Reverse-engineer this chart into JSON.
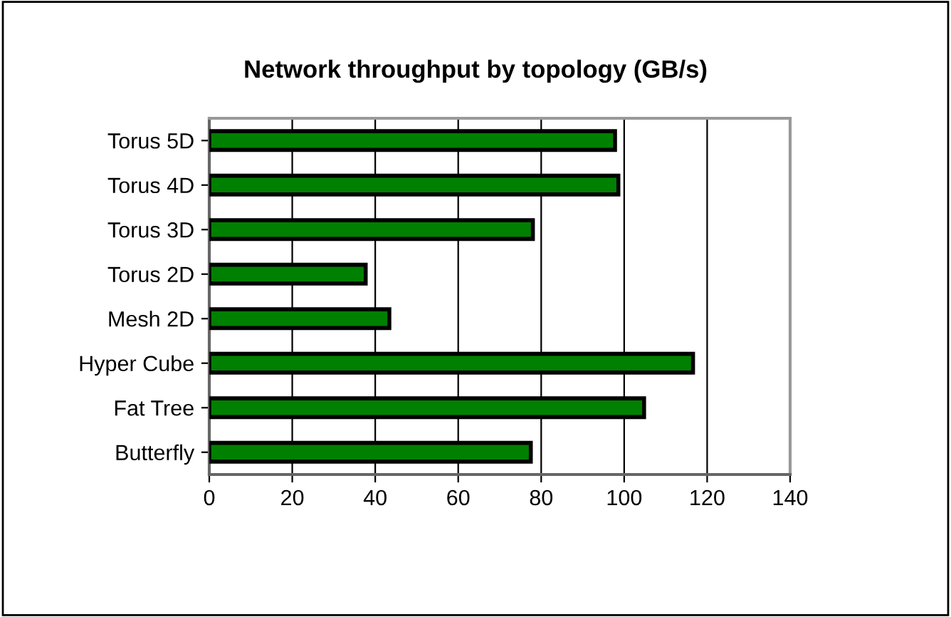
{
  "chart_data": {
    "type": "bar",
    "orientation": "horizontal",
    "title": "Network throughput by topology (GB/s)",
    "categories": [
      "Torus 5D",
      "Torus 4D",
      "Torus 3D",
      "Torus 2D",
      "Mesh 2D",
      "Hyper Cube",
      "Fat Tree",
      "Butterfly"
    ],
    "values": [
      97.8,
      98.6,
      78.0,
      37.7,
      43.4,
      116.6,
      104.8,
      77.5
    ],
    "color": "#008000",
    "xlim": [
      0,
      140
    ],
    "xticks": [
      0,
      20,
      40,
      60,
      80,
      100,
      120,
      140
    ],
    "grid": "x",
    "legend": false
  }
}
